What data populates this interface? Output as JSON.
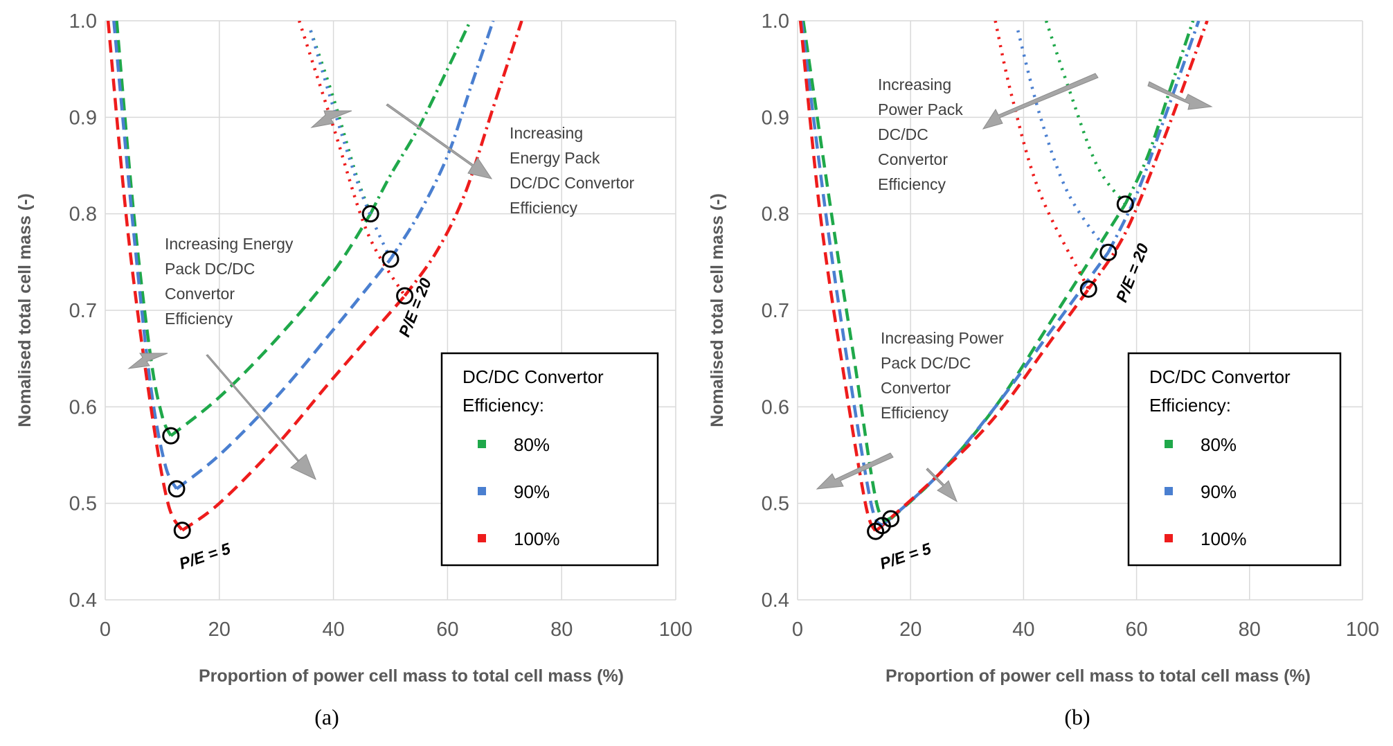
{
  "colors": {
    "green": "#1fa84a",
    "blue": "#4a7fd0",
    "red": "#ee1c1c",
    "arrow": "#a6a6a6",
    "grid": "#d9d9d9",
    "text": "#595959"
  },
  "chart_data": [
    {
      "type": "line",
      "panel_label": "(a)",
      "xlabel": "Proportion of power cell mass to total cell mass (%)",
      "ylabel": "Nomalised total cell mass (-)",
      "xlim": [
        0,
        100
      ],
      "ylim": [
        0.4,
        1.0
      ],
      "x_ticks": [
        "0",
        "20",
        "40",
        "60",
        "80",
        "100"
      ],
      "y_ticks": [
        "0.4",
        "0.5",
        "0.6",
        "0.7",
        "0.8",
        "0.9",
        "1.0"
      ],
      "legend": {
        "title_line1": "DC/DC Convertor",
        "title_line2": "Efficiency:",
        "items": [
          "80%",
          "90%",
          "100%"
        ]
      },
      "annotations": [
        {
          "lines": [
            "Increasing Energy",
            "Pack DC/DC",
            "Convertor",
            "Efficiency"
          ]
        },
        {
          "lines": [
            "Increasing",
            "Energy Pack",
            "DC/DC Convertor",
            "Efficiency"
          ]
        }
      ],
      "point_labels": [
        "P/E = 5",
        "P/E = 20"
      ],
      "series": [
        {
          "name": "80%",
          "color": "green",
          "pe5": {
            "x": [
              2,
              5,
              8,
              10,
              11.5
            ],
            "y": [
              1.0,
              0.8,
              0.65,
              0.59,
              0.57
            ]
          },
          "pe5_upper": {
            "x": [
              11.5,
              20,
              30,
              40,
              46.5
            ],
            "y": [
              0.57,
              0.61,
              0.67,
              0.74,
              0.8
            ]
          },
          "pe20_left": {
            "x": [
              36,
              40,
              44,
              46.5
            ],
            "y": [
              0.99,
              0.92,
              0.84,
              0.8
            ]
          },
          "pe20_right": {
            "x": [
              46.5,
              50,
              55,
              60,
              64
            ],
            "y": [
              0.8,
              0.84,
              0.89,
              0.95,
              1.0
            ]
          }
        },
        {
          "name": "90%",
          "color": "blue",
          "pe5": {
            "x": [
              1.5,
              5,
              8,
              10.5,
              12.5
            ],
            "y": [
              1.0,
              0.78,
              0.62,
              0.54,
              0.515
            ]
          },
          "pe5_upper": {
            "x": [
              12.5,
              20,
              30,
              40,
              50
            ],
            "y": [
              0.515,
              0.55,
              0.61,
              0.68,
              0.753
            ]
          },
          "pe20_left": {
            "x": [
              36,
              40,
              45,
              50
            ],
            "y": [
              0.99,
              0.91,
              0.82,
              0.753
            ]
          },
          "pe20_right": {
            "x": [
              50,
              55,
              60,
              64,
              68
            ],
            "y": [
              0.753,
              0.8,
              0.86,
              0.93,
              1.0
            ]
          }
        },
        {
          "name": "100%",
          "color": "red",
          "pe5": {
            "x": [
              0.5,
              4,
              8,
              11,
              13.5
            ],
            "y": [
              1.0,
              0.78,
              0.6,
              0.5,
              0.472
            ]
          },
          "pe5_upper": {
            "x": [
              13.5,
              20,
              30,
              40,
              52.5
            ],
            "y": [
              0.472,
              0.5,
              0.56,
              0.63,
              0.715
            ]
          },
          "pe20_left": {
            "x": [
              34,
              40,
              46,
              52.5
            ],
            "y": [
              1.0,
              0.89,
              0.78,
              0.715
            ]
          },
          "pe20_right": {
            "x": [
              52.5,
              58,
              63,
              68,
              73
            ],
            "y": [
              0.715,
              0.76,
              0.82,
              0.91,
              1.0
            ]
          }
        }
      ],
      "markers": [
        {
          "series": "80%",
          "x": 11.5,
          "y": 0.57
        },
        {
          "series": "90%",
          "x": 12.5,
          "y": 0.515
        },
        {
          "series": "100%",
          "x": 13.5,
          "y": 0.472
        },
        {
          "series": "80%",
          "x": 46.5,
          "y": 0.8
        },
        {
          "series": "90%",
          "x": 50,
          "y": 0.753
        },
        {
          "series": "100%",
          "x": 52.5,
          "y": 0.715
        }
      ]
    },
    {
      "type": "line",
      "panel_label": "(b)",
      "xlabel": "Proportion of power cell mass to total cell mass (%)",
      "ylabel": "Nomalised total cell mass (-)",
      "xlim": [
        0,
        100
      ],
      "ylim": [
        0.4,
        1.0
      ],
      "x_ticks": [
        "0",
        "20",
        "40",
        "60",
        "80",
        "100"
      ],
      "y_ticks": [
        "0.4",
        "0.5",
        "0.6",
        "0.7",
        "0.8",
        "0.9",
        "1.0"
      ],
      "legend": {
        "title_line1": "DC/DC Convertor",
        "title_line2": "Efficiency:",
        "items": [
          "80%",
          "90%",
          "100%"
        ]
      },
      "annotations": [
        {
          "lines": [
            "Increasing",
            "Power Pack",
            "DC/DC",
            "Convertor",
            "Efficiency"
          ]
        },
        {
          "lines": [
            "Increasing Power",
            "Pack DC/DC",
            "Convertor",
            "Efficiency"
          ]
        }
      ],
      "point_labels": [
        "P/E = 5",
        "P/E = 20"
      ],
      "series": [
        {
          "name": "80%",
          "color": "green",
          "pe5": {
            "x": [
              1,
              6,
              10,
              14,
              16.5
            ],
            "y": [
              1.0,
              0.8,
              0.65,
              0.5,
              0.484
            ]
          },
          "pe5_upper": {
            "x": [
              16.5,
              25,
              35,
              45,
              58
            ],
            "y": [
              0.484,
              0.53,
              0.6,
              0.69,
              0.81
            ]
          },
          "pe20_left": {
            "x": [
              44,
              48,
              53,
              58
            ],
            "y": [
              1.0,
              0.93,
              0.85,
              0.81
            ]
          },
          "pe20_right": {
            "x": [
              58,
              62,
              66,
              70
            ],
            "y": [
              0.81,
              0.86,
              0.93,
              1.0
            ]
          }
        },
        {
          "name": "90%",
          "color": "blue",
          "pe5": {
            "x": [
              0.7,
              5,
              9,
              13,
              15
            ],
            "y": [
              1.0,
              0.8,
              0.64,
              0.5,
              0.477
            ]
          },
          "pe5_upper": {
            "x": [
              15,
              25,
              35,
              45,
              55
            ],
            "y": [
              0.477,
              0.53,
              0.6,
              0.68,
              0.76
            ]
          },
          "pe20_left": {
            "x": [
              39,
              43,
              48,
              55
            ],
            "y": [
              0.99,
              0.9,
              0.82,
              0.76
            ]
          },
          "pe20_right": {
            "x": [
              55,
              60,
              65,
              71
            ],
            "y": [
              0.76,
              0.82,
              0.9,
              1.0
            ]
          }
        },
        {
          "name": "100%",
          "color": "red",
          "pe5": {
            "x": [
              0.5,
              4,
              8,
              12,
              13.8
            ],
            "y": [
              1.0,
              0.8,
              0.64,
              0.5,
              0.471
            ]
          },
          "pe5_upper": {
            "x": [
              13.8,
              25,
              35,
              45,
              51.5
            ],
            "y": [
              0.471,
              0.53,
              0.59,
              0.67,
              0.722
            ]
          },
          "pe20_left": {
            "x": [
              35,
              38,
              43,
              51.5
            ],
            "y": [
              1.0,
              0.92,
              0.82,
              0.722
            ]
          },
          "pe20_right": {
            "x": [
              51.5,
              58,
              65,
              72.5
            ],
            "y": [
              0.722,
              0.78,
              0.88,
              1.0
            ]
          }
        }
      ],
      "markers": [
        {
          "series": "100%",
          "x": 13.8,
          "y": 0.471
        },
        {
          "series": "90%",
          "x": 15,
          "y": 0.477
        },
        {
          "series": "80%",
          "x": 16.5,
          "y": 0.484
        },
        {
          "series": "100%",
          "x": 51.5,
          "y": 0.722
        },
        {
          "series": "90%",
          "x": 55,
          "y": 0.76
        },
        {
          "series": "80%",
          "x": 58,
          "y": 0.81
        }
      ]
    }
  ]
}
